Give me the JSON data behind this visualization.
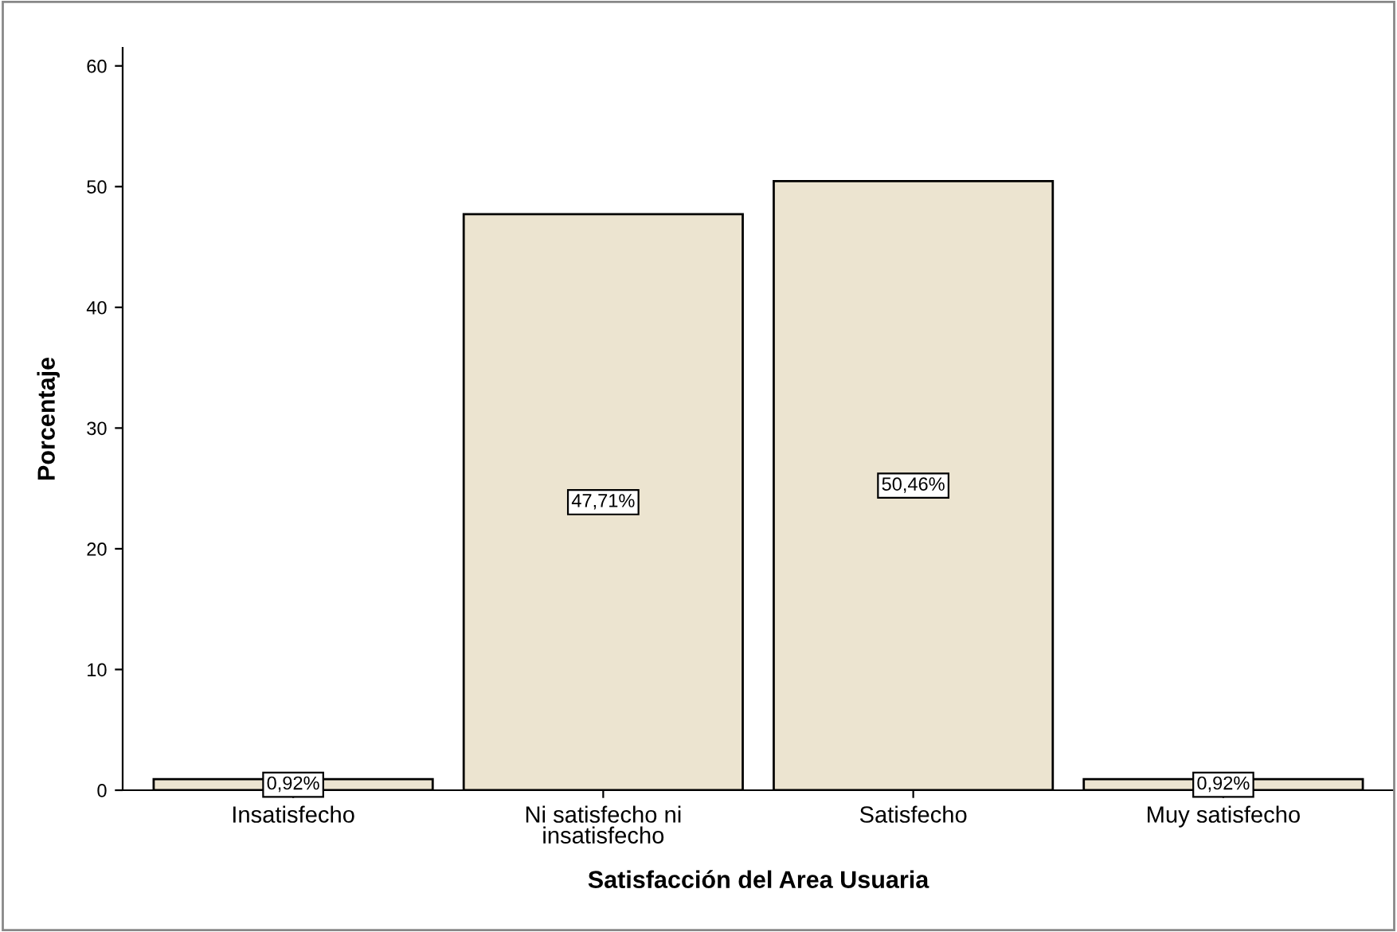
{
  "chart_data": {
    "type": "bar",
    "xlabel": "Satisfacción del Area Usuaria",
    "ylabel": "Porcentaje",
    "categories": [
      "Insatisfecho",
      "Ni satisfecho ni\ninsatisfecho",
      "Satisfecho",
      "Muy satisfecho"
    ],
    "values": [
      0.92,
      47.71,
      50.46,
      0.92
    ],
    "value_labels": [
      "0,92%",
      "47,71%",
      "50,46%",
      "0,92%"
    ],
    "color": "#ece4d0",
    "ylim": [
      0,
      61.5
    ],
    "yticks": [
      0,
      10,
      20,
      30,
      40,
      50,
      60
    ],
    "grid": false
  }
}
